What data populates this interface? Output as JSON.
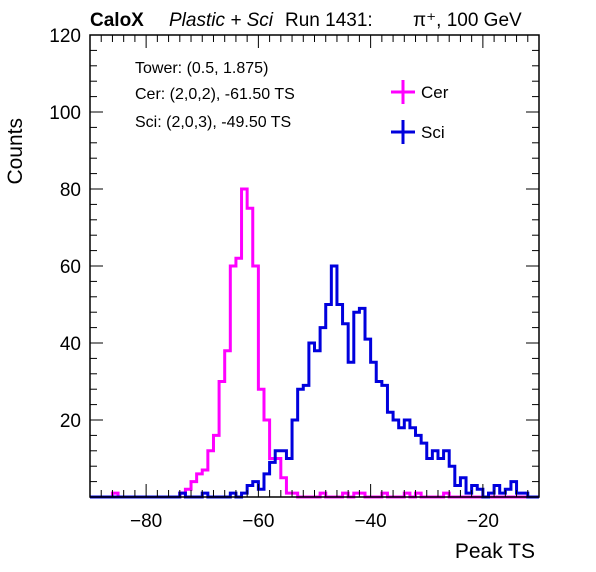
{
  "header": {
    "experiment": "CaloX",
    "material": "Plastic + Sci",
    "run": "Run 1431:",
    "beam": "π⁺, 100 GeV"
  },
  "info_box": {
    "tower": "Tower: (0.5, 1.875)",
    "cer": "Cer: (2,0,2), -61.50 TS",
    "sci": "Sci: (2,0,3), -49.50 TS"
  },
  "colors": {
    "cer": "#ff00ff",
    "sci": "#0000dd"
  },
  "chart_data": {
    "type": "line",
    "title": "",
    "xlabel": "Peak TS",
    "ylabel": "Counts",
    "xlim": [
      -90,
      -10
    ],
    "ylim": [
      0,
      120
    ],
    "x_ticks": [
      -80,
      -60,
      -40,
      -20
    ],
    "y_ticks": [
      20,
      40,
      60,
      80,
      100,
      120
    ],
    "grid": false,
    "legend_position": "top-right",
    "bin_start": -90,
    "bin_width": 1,
    "series": [
      {
        "name": "Cer",
        "values": [
          0,
          0,
          0,
          0,
          1,
          0,
          0,
          0,
          0,
          0,
          0,
          0,
          0,
          0,
          0,
          0,
          1,
          2,
          4,
          6,
          7,
          12,
          16,
          30,
          38,
          60,
          62,
          80,
          75,
          60,
          28,
          20,
          10,
          10,
          5,
          1,
          1,
          0,
          0,
          0,
          0,
          1,
          0,
          0,
          0,
          1,
          0,
          1,
          1,
          0,
          0,
          0,
          1,
          0,
          0,
          0,
          1,
          0,
          1,
          0,
          0,
          0,
          0,
          1,
          0,
          0,
          0,
          0,
          0,
          0,
          0,
          0,
          0,
          0,
          0,
          0,
          0,
          0,
          0,
          0
        ]
      },
      {
        "name": "Sci",
        "values": [
          0,
          0,
          0,
          0,
          0,
          0,
          0,
          0,
          0,
          0,
          0,
          0,
          0,
          0,
          0,
          0,
          1,
          0,
          0,
          0,
          1,
          0,
          0,
          0,
          0,
          1,
          0,
          1,
          3,
          4,
          2,
          6,
          9,
          12,
          12,
          10,
          20,
          28,
          29,
          40,
          38,
          44,
          50,
          60,
          50,
          45,
          35,
          48,
          49,
          41,
          35,
          30,
          29,
          22,
          20,
          18,
          20,
          18,
          16,
          14,
          10,
          12,
          10,
          12,
          8,
          3,
          5,
          1,
          3,
          2,
          0,
          1,
          3,
          1,
          2,
          4,
          1,
          1,
          0,
          0
        ]
      }
    ]
  }
}
